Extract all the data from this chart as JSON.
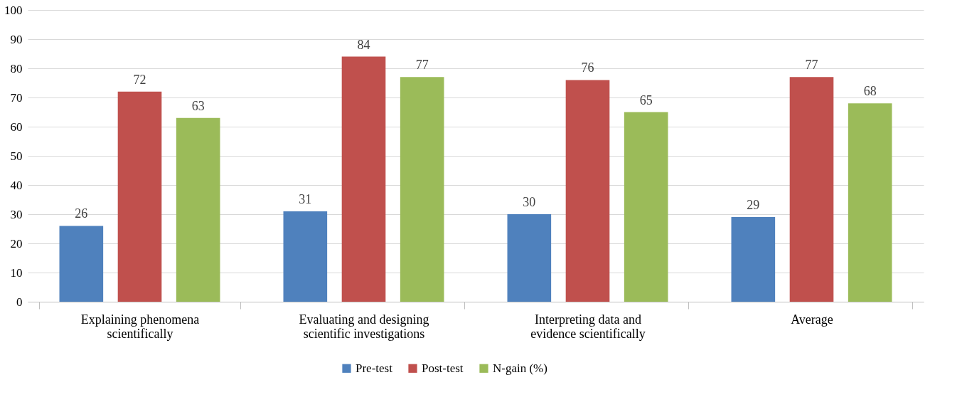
{
  "chart_data": {
    "type": "bar",
    "categories": [
      "Explaining phenomena scientifically",
      "Evaluating and designing scientific investigations",
      "Interpreting data and evidence scientifically",
      "Average"
    ],
    "series": [
      {
        "name": "Pre-test",
        "color": "#4f81bd",
        "values": [
          26,
          31,
          30,
          29
        ]
      },
      {
        "name": "Post-test",
        "color": "#c0504d",
        "values": [
          72,
          84,
          76,
          77
        ]
      },
      {
        "name": "N-gain (%)",
        "color": "#9bbb59",
        "values": [
          63,
          77,
          65,
          68
        ]
      }
    ],
    "ylim": [
      0,
      100
    ],
    "yticks": [
      0,
      10,
      20,
      30,
      40,
      50,
      60,
      70,
      80,
      90,
      100
    ],
    "grid": "y",
    "legend": "bottom",
    "data_labels": true
  }
}
